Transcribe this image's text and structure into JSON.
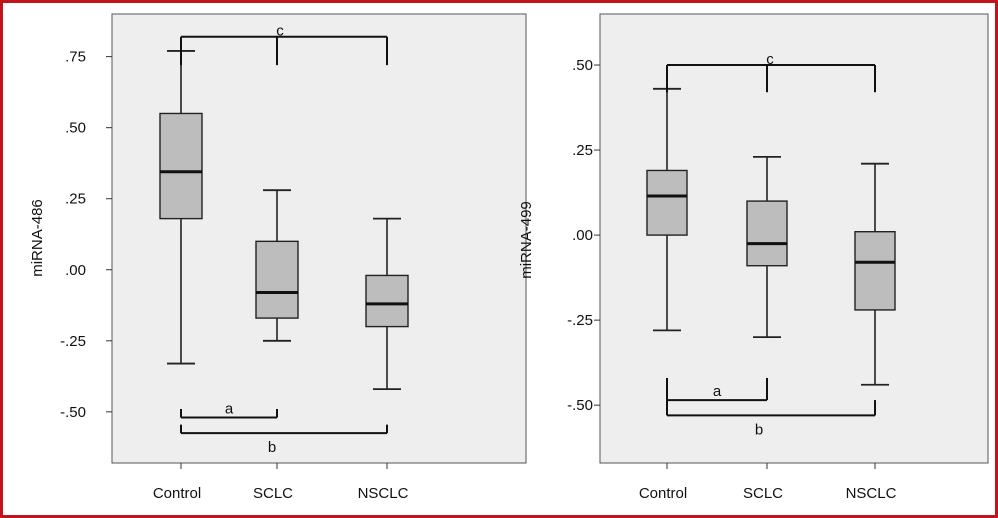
{
  "chart_data": [
    {
      "type": "box",
      "title": "",
      "xlabel": "",
      "ylabel": "miRNA-486",
      "categories": [
        "Control",
        "SCLC",
        "NSCLC"
      ],
      "yticks": [
        ".75",
        ".50",
        ".25",
        ".00",
        "-.25",
        "-.50"
      ],
      "ytick_values": [
        0.75,
        0.5,
        0.25,
        0.0,
        -0.25,
        -0.5
      ],
      "ylim": [
        -0.68,
        0.9
      ],
      "grid": false,
      "boxes": [
        {
          "category": "Control",
          "min": -0.33,
          "q1": 0.18,
          "median": 0.345,
          "q3": 0.55,
          "max": 0.77
        },
        {
          "category": "SCLC",
          "min": -0.25,
          "q1": -0.17,
          "median": -0.08,
          "q3": 0.1,
          "max": 0.28
        },
        {
          "category": "NSCLC",
          "min": -0.42,
          "q1": -0.2,
          "median": -0.12,
          "q3": -0.02,
          "max": 0.18
        }
      ],
      "annotations": [
        {
          "label": "c",
          "from": "Control",
          "to": "NSCLC",
          "via": "SCLC",
          "y": 0.82,
          "drop_to": 0.72,
          "side": "top"
        },
        {
          "label": "a",
          "from": "Control",
          "to": "SCLC",
          "y": -0.52,
          "drop_to": -0.49,
          "side": "bottom"
        },
        {
          "label": "b",
          "from": "Control",
          "to": "NSCLC",
          "y": -0.575,
          "drop_to": -0.545,
          "side": "bottom"
        }
      ]
    },
    {
      "type": "box",
      "title": "",
      "xlabel": "",
      "ylabel": "miRNA-499",
      "categories": [
        "Control",
        "SCLC",
        "NSCLC"
      ],
      "yticks": [
        ".50",
        ".25",
        ".00",
        "-.25",
        "-.50"
      ],
      "ytick_values": [
        0.5,
        0.25,
        0.0,
        -0.25,
        -0.5
      ],
      "ylim": [
        -0.67,
        0.65
      ],
      "grid": false,
      "boxes": [
        {
          "category": "Control",
          "min": -0.28,
          "q1": 0.0,
          "median": 0.115,
          "q3": 0.19,
          "max": 0.43
        },
        {
          "category": "SCLC",
          "min": -0.3,
          "q1": -0.09,
          "median": -0.025,
          "q3": 0.1,
          "max": 0.23
        },
        {
          "category": "NSCLC",
          "min": -0.44,
          "q1": -0.22,
          "median": -0.08,
          "q3": 0.01,
          "max": 0.21
        }
      ],
      "annotations": [
        {
          "label": "c",
          "from": "Control",
          "to": "NSCLC",
          "via": "SCLC",
          "y": 0.5,
          "drop_to": 0.42,
          "side": "top"
        },
        {
          "label": "a",
          "from": "Control",
          "to": "SCLC",
          "y": -0.485,
          "drop_to": -0.42,
          "side": "bottom"
        },
        {
          "label": "b",
          "from": "Control",
          "to": "NSCLC",
          "y": -0.53,
          "drop_to": -0.485,
          "side": "bottom"
        }
      ]
    }
  ]
}
